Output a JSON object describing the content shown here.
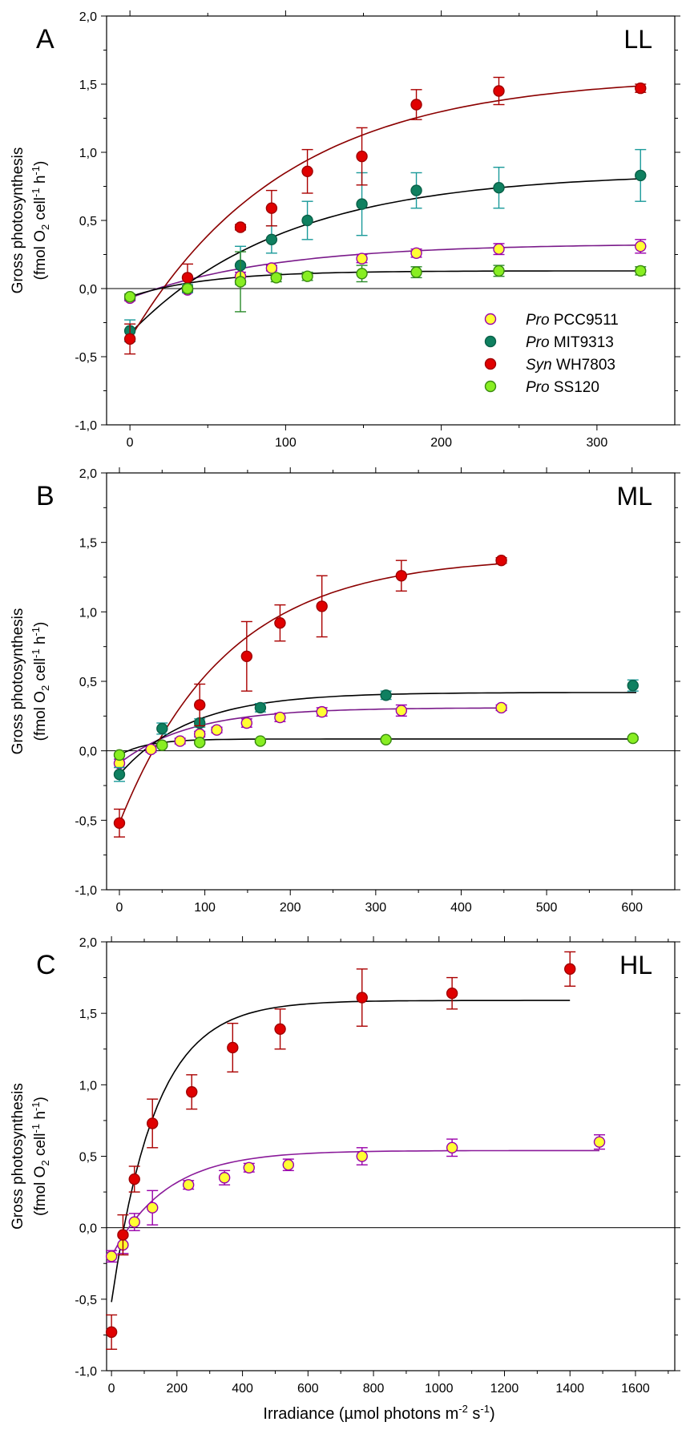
{
  "figure": {
    "x_axis_label": "Irradiance (µmol photons m-2 s-1)",
    "x_axis_label_parts": {
      "main": "Irradiance (µmol photons m",
      "exp1": "-2",
      "mid": " s",
      "exp2": "-1",
      "end": ")"
    },
    "y_axis_label_line1": "Gross photosynthesis",
    "y_axis_label_line2_parts": {
      "pre": "(fmol O",
      "sub": "2",
      "mid": " cell",
      "exp1": "-1",
      "mid2": " h",
      "exp2": "-1",
      "end": ")"
    }
  },
  "legend": [
    {
      "genus": "Pro",
      "strain": "PCC9511",
      "fill": "#ffff33",
      "stroke": "#9900aa"
    },
    {
      "genus": "Pro",
      "strain": "MIT9313",
      "fill": "#0f8060",
      "stroke": "#0a6048"
    },
    {
      "genus": "Syn",
      "strain": "WH7803",
      "fill": "#e00000",
      "stroke": "#a00000"
    },
    {
      "genus": "Pro",
      "strain": "SS120",
      "fill": "#88ee22",
      "stroke": "#3a8a10"
    }
  ],
  "chart_data": [
    {
      "type": "scatter",
      "panel": "A",
      "condition": "LL",
      "xlim": [
        -15,
        350
      ],
      "ylim": [
        -1.0,
        2.0
      ],
      "x_ticks": [
        "0",
        "100",
        "200",
        "300"
      ],
      "y_ticks": [
        "-1,0",
        "-0,5",
        "0,0",
        "0,5",
        "1,0",
        "1,5",
        "2,0"
      ],
      "grid": false,
      "legend_position": "bottom-right",
      "series": [
        {
          "name": "Pro PCC9511",
          "fill": "#ffff33",
          "stroke": "#9900aa",
          "err_color": "#9900aa",
          "curve_color": "#7a1a8a",
          "x": [
            0,
            37,
            71,
            91,
            149,
            184,
            237,
            328
          ],
          "y": [
            -0.07,
            -0.01,
            0.09,
            0.15,
            0.22,
            0.26,
            0.29,
            0.31
          ],
          "err": [
            0.02,
            0.02,
            0.03,
            0.02,
            0.03,
            0.03,
            0.04,
            0.05
          ],
          "curve_y0": -0.07,
          "curve_ymax": 0.33,
          "curve_k": 0.011,
          "curve_xmax": 330
        },
        {
          "name": "Pro MIT9313",
          "fill": "#0f8060",
          "stroke": "#0a6048",
          "err_color": "#1a9a9a",
          "curve_color": "#000000",
          "x": [
            0,
            37,
            71,
            91,
            114,
            149,
            184,
            237,
            328
          ],
          "y": [
            -0.31,
            0.0,
            0.17,
            0.36,
            0.5,
            0.62,
            0.72,
            0.74,
            0.83
          ],
          "err": [
            0.08,
            0.03,
            0.14,
            0.1,
            0.14,
            0.23,
            0.13,
            0.15,
            0.19
          ],
          "curve_y0": -0.33,
          "curve_ymax": 0.85,
          "curve_k": 0.01,
          "curve_xmax": 330
        },
        {
          "name": "Syn WH7803",
          "fill": "#e00000",
          "stroke": "#a00000",
          "err_color": "#aa0000",
          "curve_color": "#8b0000",
          "x": [
            0,
            37,
            71,
            91,
            114,
            149,
            184,
            237,
            328
          ],
          "y": [
            -0.37,
            0.08,
            0.45,
            0.59,
            0.86,
            0.97,
            1.35,
            1.45,
            1.47
          ],
          "err": [
            0.11,
            0.1,
            0.02,
            0.13,
            0.16,
            0.21,
            0.11,
            0.1,
            0.03
          ],
          "curve_y0": -0.37,
          "curve_ymax": 1.56,
          "curve_k": 0.01,
          "curve_xmax": 330
        },
        {
          "name": "Pro SS120",
          "fill": "#88ee22",
          "stroke": "#3a8a10",
          "err_color": "#2a8a2a",
          "curve_color": "#000000",
          "x": [
            0,
            37,
            71,
            94,
            114,
            149,
            184,
            237,
            328
          ],
          "y": [
            -0.06,
            0.0,
            0.05,
            0.08,
            0.09,
            0.11,
            0.12,
            0.13,
            0.13
          ],
          "err": [
            0.02,
            0.02,
            0.22,
            0.03,
            0.03,
            0.06,
            0.04,
            0.04,
            0.03
          ],
          "curve_y0": -0.06,
          "curve_ymax": 0.13,
          "curve_k": 0.02,
          "curve_xmax": 330
        }
      ]
    },
    {
      "type": "scatter",
      "panel": "B",
      "condition": "ML",
      "xlim": [
        -15,
        650
      ],
      "ylim": [
        -1.0,
        2.0
      ],
      "x_ticks": [
        "0",
        "100",
        "200",
        "300",
        "400",
        "500",
        "600"
      ],
      "y_ticks": [
        "-1,0",
        "-0,5",
        "0,0",
        "0,5",
        "1,0",
        "1,5",
        "2,0"
      ],
      "grid": false,
      "series": [
        {
          "name": "Pro PCC9511",
          "fill": "#ffff33",
          "stroke": "#9900aa",
          "err_color": "#9900aa",
          "curve_color": "#7a1a8a",
          "x": [
            0,
            37,
            71,
            94,
            114,
            149,
            188,
            237,
            330,
            447
          ],
          "y": [
            -0.09,
            0.01,
            0.07,
            0.12,
            0.15,
            0.2,
            0.24,
            0.28,
            0.29,
            0.31
          ],
          "err": [
            0.03,
            0.02,
            0.02,
            0.02,
            0.02,
            0.03,
            0.03,
            0.03,
            0.04,
            0.02
          ],
          "curve_y0": -0.09,
          "curve_ymax": 0.31,
          "curve_k": 0.012,
          "curve_xmax": 450
        },
        {
          "name": "Pro MIT9313",
          "fill": "#0f8060",
          "stroke": "#0a6048",
          "err_color": "#1a9a9a",
          "curve_color": "#000000",
          "x": [
            0,
            50,
            94,
            165,
            312,
            601
          ],
          "y": [
            -0.17,
            0.16,
            0.2,
            0.31,
            0.4,
            0.47
          ],
          "err": [
            0.05,
            0.04,
            0.03,
            0.03,
            0.03,
            0.04
          ],
          "curve_y0": -0.17,
          "curve_ymax": 0.42,
          "curve_k": 0.012,
          "curve_xmax": 605
        },
        {
          "name": "Syn WH7803",
          "fill": "#e00000",
          "stroke": "#a00000",
          "err_color": "#aa0000",
          "curve_color": "#8b0000",
          "x": [
            0,
            94,
            149,
            188,
            237,
            330,
            447
          ],
          "y": [
            -0.52,
            0.33,
            0.68,
            0.92,
            1.04,
            1.26,
            1.37
          ],
          "err": [
            0.1,
            0.15,
            0.25,
            0.13,
            0.22,
            0.11,
            0.02
          ],
          "curve_y0": -0.52,
          "curve_ymax": 1.4,
          "curve_k": 0.008,
          "curve_xmax": 450
        },
        {
          "name": "Pro SS120",
          "fill": "#88ee22",
          "stroke": "#3a8a10",
          "err_color": "#2a8a2a",
          "curve_color": "#000000",
          "x": [
            0,
            50,
            94,
            165,
            312,
            601
          ],
          "y": [
            -0.03,
            0.04,
            0.06,
            0.07,
            0.08,
            0.09
          ],
          "err": [
            0.01,
            0.01,
            0.01,
            0.01,
            0.01,
            0.01
          ],
          "curve_y0": -0.03,
          "curve_ymax": 0.085,
          "curve_k": 0.03,
          "curve_xmax": 605
        }
      ]
    },
    {
      "type": "scatter",
      "panel": "C",
      "condition": "HL",
      "xlim": [
        -15,
        1720
      ],
      "ylim": [
        -1.0,
        2.0
      ],
      "x_ticks": [
        "0",
        "200",
        "400",
        "600",
        "800",
        "1000",
        "1200",
        "1400",
        "1600"
      ],
      "y_ticks": [
        "-1,0",
        "-0,5",
        "0,0",
        "0,5",
        "1,0",
        "1,5",
        "2,0"
      ],
      "grid": false,
      "series": [
        {
          "name": "Pro PCC9511",
          "fill": "#ffff33",
          "stroke": "#9900aa",
          "err_color": "#9900aa",
          "curve_color": "#8a1a9a",
          "x": [
            0,
            35,
            70,
            125,
            235,
            345,
            420,
            540,
            765,
            1040,
            1490
          ],
          "y": [
            -0.2,
            -0.12,
            0.04,
            0.14,
            0.3,
            0.35,
            0.42,
            0.44,
            0.5,
            0.56,
            0.6
          ],
          "err": [
            0.04,
            0.06,
            0.06,
            0.12,
            0.03,
            0.05,
            0.03,
            0.04,
            0.06,
            0.06,
            0.05
          ],
          "curve_y0": -0.2,
          "curve_ymax": 0.54,
          "curve_k": 0.006,
          "curve_xmax": 1490
        },
        {
          "name": "Syn WH7803",
          "fill": "#e00000",
          "stroke": "#a00000",
          "err_color": "#aa0000",
          "curve_color": "#000000",
          "x": [
            0,
            35,
            70,
            125,
            245,
            370,
            515,
            765,
            1040,
            1400
          ],
          "y": [
            -0.73,
            -0.05,
            0.34,
            0.73,
            0.95,
            1.26,
            1.39,
            1.61,
            1.64,
            1.81
          ],
          "err": [
            0.12,
            0.14,
            0.09,
            0.17,
            0.12,
            0.17,
            0.14,
            0.2,
            0.11,
            0.12
          ],
          "curve_y0": -0.52,
          "curve_ymax": 1.59,
          "curve_k": 0.0075,
          "curve_xmax": 1400
        }
      ]
    }
  ]
}
